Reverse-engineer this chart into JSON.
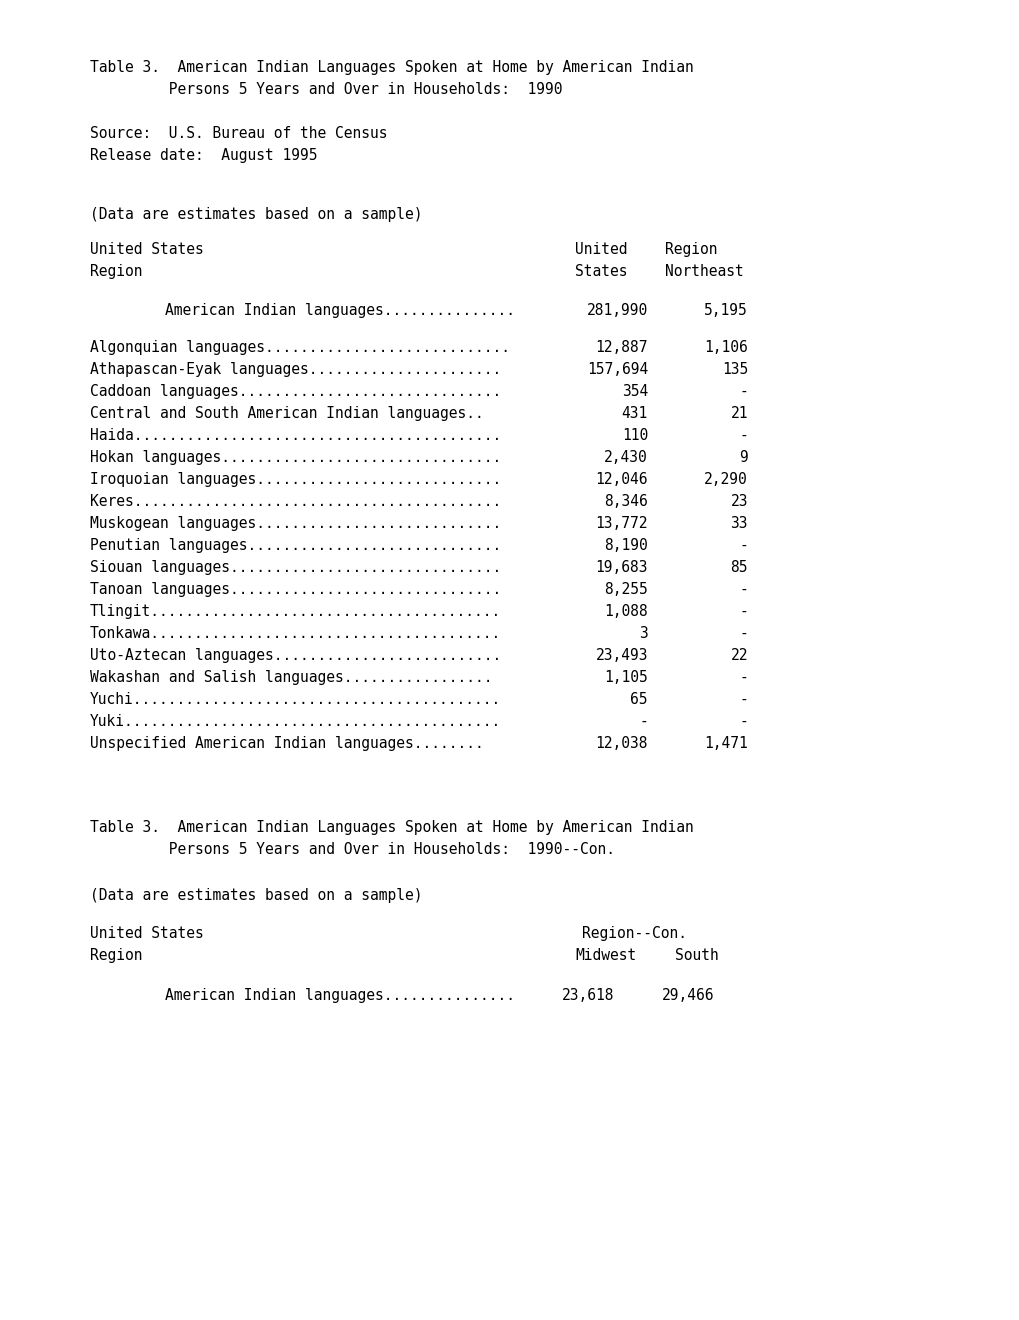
{
  "title_line1": "Table 3.  American Indian Languages Spoken at Home by American Indian",
  "title_line2": "         Persons 5 Years and Over in Households:  1990",
  "source_line1": "Source:  U.S. Bureau of the Census",
  "source_line2": "Release date:  August 1995",
  "note": "(Data are estimates based on a sample)",
  "header_col1_line1": "United States",
  "header_col1_line2": "Region",
  "header_col2_line1": "United",
  "header_col2_line2": "States",
  "header_col3_line1": "Region",
  "header_col3_line2": "Northeast",
  "indent_row": "    American Indian languages...............",
  "indent_val1": "281,990",
  "indent_val2": "5,195",
  "rows": [
    [
      "Algonquian languages............................",
      "12,887",
      "1,106"
    ],
    [
      "Athapascan-Eyak languages......................",
      "157,694",
      "135"
    ],
    [
      "Caddoan languages..............................",
      "354",
      "-"
    ],
    [
      "Central and South American Indian languages..",
      "431",
      "21"
    ],
    [
      "Haida..........................................",
      "110",
      "-"
    ],
    [
      "Hokan languages................................",
      "2,430",
      "9"
    ],
    [
      "Iroquoian languages............................",
      "12,046",
      "2,290"
    ],
    [
      "Keres..........................................",
      "8,346",
      "23"
    ],
    [
      "Muskogean languages............................",
      "13,772",
      "33"
    ],
    [
      "Penutian languages.............................",
      "8,190",
      "-"
    ],
    [
      "Siouan languages...............................",
      "19,683",
      "85"
    ],
    [
      "Tanoan languages...............................",
      "8,255",
      "-"
    ],
    [
      "Tlingit........................................",
      "1,088",
      "-"
    ],
    [
      "Tonkawa........................................",
      "3",
      "-"
    ],
    [
      "Uto-Aztecan languages..........................",
      "23,493",
      "22"
    ],
    [
      "Wakashan and Salish languages.................",
      "1,105",
      "-"
    ],
    [
      "Yuchi..........................................",
      "65",
      "-"
    ],
    [
      "Yuki...........................................",
      "-",
      "-"
    ],
    [
      "Unspecified American Indian languages........",
      "12,038",
      "1,471"
    ]
  ],
  "title2_line1": "Table 3.  American Indian Languages Spoken at Home by American Indian",
  "title2_line2": "         Persons 5 Years and Over in Households:  1990--Con.",
  "note2": "(Data are estimates based on a sample)",
  "header2_col1_line1": "United States",
  "header2_col1_line2": "Region",
  "header2_col2_line1": "Region--Con.",
  "header2_col3_line1": "Midwest",
  "header2_col3_line2": "South",
  "indent_row2": "    American Indian languages...............",
  "indent_val3": "23,618",
  "indent_val4": "29,466",
  "bg_color": "#ffffff",
  "text_color": "#000000",
  "font_size": 10.5,
  "fig_width": 10.2,
  "fig_height": 13.2,
  "dpi": 100
}
